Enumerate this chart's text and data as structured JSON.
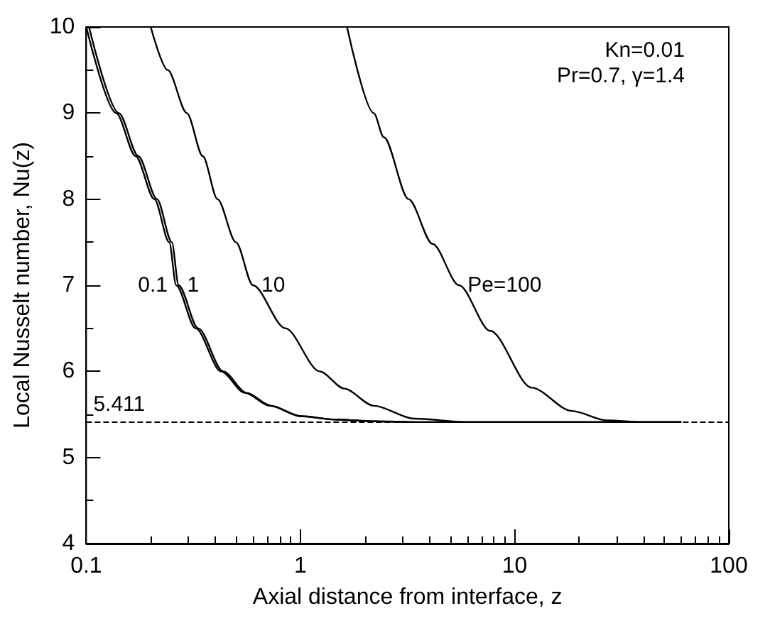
{
  "chart_data": {
    "type": "line",
    "xlabel": "Axial distance from interface, z",
    "ylabel": "Local Nusselt number, Nu(z)",
    "log": "x",
    "xlim": [
      0.1,
      100
    ],
    "xticks": [
      0.1,
      1,
      10,
      100
    ],
    "ylim": [
      4,
      10
    ],
    "yticks": [
      4,
      5,
      6,
      7,
      8,
      9,
      10
    ],
    "grid": false,
    "legend": false,
    "marker": "none",
    "line_style": "solid",
    "series": [
      {
        "name": "0.1",
        "color": "#000000",
        "x": [
          0.1,
          0.138,
          0.17,
          0.208,
          0.244,
          0.263,
          0.324,
          0.426,
          0.55,
          0.72,
          1.0,
          1.45,
          2.2,
          3.5,
          10,
          60
        ],
        "values": [
          10,
          9,
          8.5,
          8,
          7.5,
          7,
          6.5,
          6,
          5.75,
          5.6,
          5.48,
          5.44,
          5.42,
          5.41,
          5.41,
          5.41
        ]
      },
      {
        "name": "1",
        "color": "#000000",
        "x": [
          0.103,
          0.142,
          0.175,
          0.214,
          0.251,
          0.27,
          0.333,
          0.436,
          0.56,
          0.73,
          1.0,
          1.45,
          2.2,
          3.5,
          10,
          60
        ],
        "values": [
          10,
          9,
          8.5,
          8,
          7.5,
          7,
          6.5,
          6,
          5.75,
          5.6,
          5.48,
          5.44,
          5.42,
          5.41,
          5.41,
          5.41
        ]
      },
      {
        "name": "10",
        "color": "#000000",
        "x": [
          0.2,
          0.24,
          0.295,
          0.35,
          0.41,
          0.5,
          0.6,
          0.85,
          1.23,
          1.6,
          2.2,
          3.4,
          6,
          10,
          60
        ],
        "values": [
          10,
          9.5,
          9,
          8.5,
          8,
          7.5,
          7,
          6.5,
          6,
          5.8,
          5.6,
          5.45,
          5.41,
          5.41,
          5.41
        ]
      },
      {
        "name": "Pe=100",
        "color": "#000000",
        "x": [
          1.65,
          2.2,
          2.45,
          3.2,
          4.14,
          5.5,
          7.7,
          12,
          18.5,
          27,
          40,
          60
        ],
        "values": [
          10,
          9,
          8.72,
          8,
          7.48,
          7,
          6.47,
          5.81,
          5.54,
          5.43,
          5.41,
          5.41
        ]
      }
    ],
    "ref_lines": [
      {
        "axis": "y",
        "value": 5.411,
        "label": "5.411",
        "color": "#000000",
        "line_style": "dashed"
      }
    ],
    "annotations": [
      "Kn=0.01",
      "Pr=0.7, γ=1.4"
    ]
  }
}
